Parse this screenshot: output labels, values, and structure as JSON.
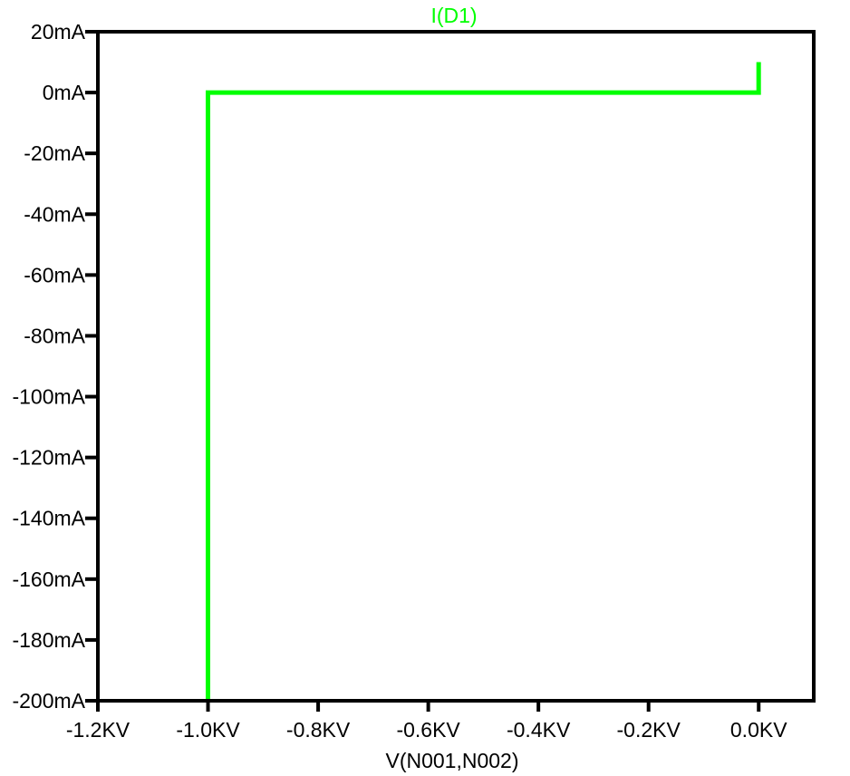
{
  "chart_data": {
    "type": "line",
    "title": "",
    "xlabel": "V(N001,N002)",
    "ylabel": "",
    "xlim": [
      -1.2,
      0.1
    ],
    "ylim": [
      -200,
      20
    ],
    "x_ticks": [
      -1.2,
      -1.0,
      -0.8,
      -0.6,
      -0.4,
      -0.2,
      0.0
    ],
    "x_tick_labels": [
      "-1.2KV",
      "-1.0KV",
      "-0.8KV",
      "-0.6KV",
      "-0.4KV",
      "-0.2KV",
      "0.0KV"
    ],
    "y_ticks": [
      20,
      0,
      -20,
      -40,
      -60,
      -80,
      -100,
      -120,
      -140,
      -160,
      -180,
      -200
    ],
    "y_tick_labels": [
      "20mA",
      "0mA",
      "-20mA",
      "-40mA",
      "-60mA",
      "-80mA",
      "-100mA",
      "-120mA",
      "-140mA",
      "-160mA",
      "-180mA",
      "-200mA"
    ],
    "grid": false,
    "legend_position": "top-center",
    "series": [
      {
        "name": "I(D1)",
        "color": "#00ff00",
        "x": [
          -1.0,
          -1.0,
          -0.001,
          0.0,
          0.0
        ],
        "y": [
          -200,
          0,
          0,
          0,
          10
        ]
      }
    ]
  }
}
